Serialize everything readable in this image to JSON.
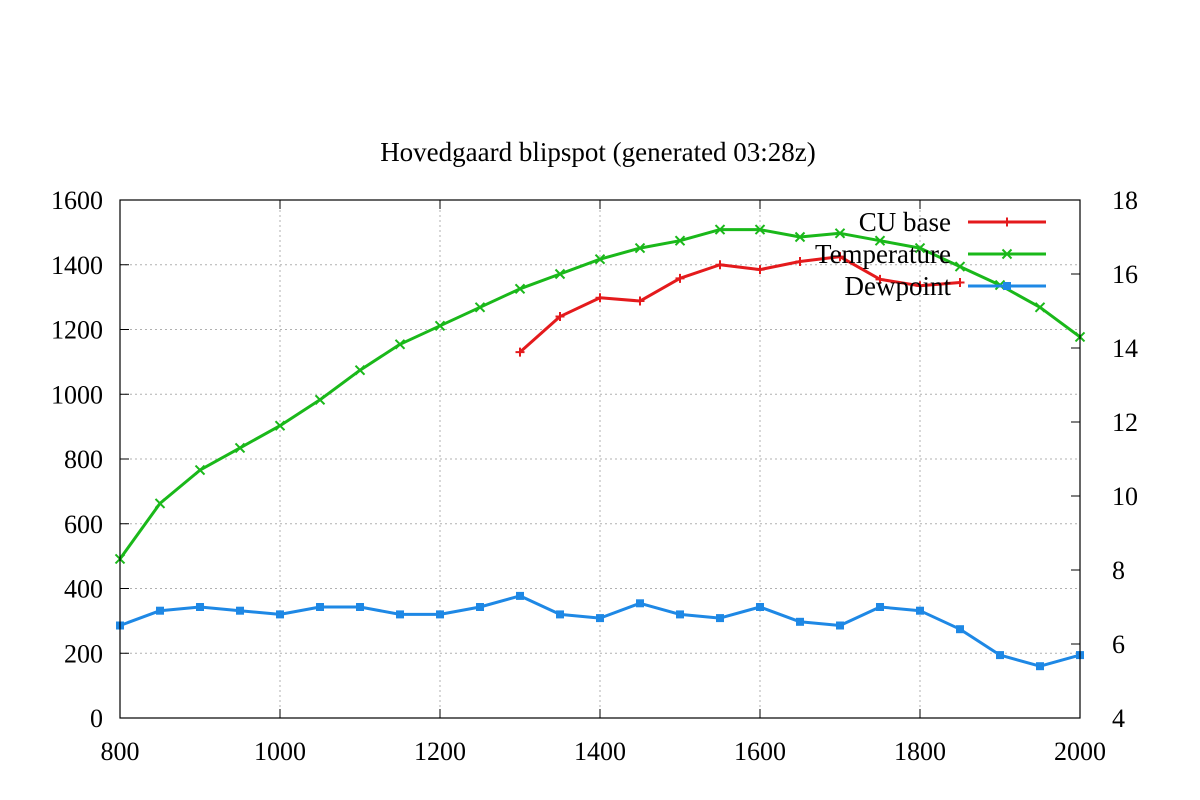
{
  "chart_data": {
    "type": "line",
    "title": "Hovedgaard  blipspot  (generated  03:28z)",
    "x_ticks": [
      "800",
      "1000",
      "1200",
      "1400",
      "1600",
      "1800",
      "2000"
    ],
    "y_ticks": [
      "0",
      "200",
      "400",
      "600",
      "800",
      "1000",
      "1200",
      "1400",
      "1600"
    ],
    "y2_ticks": [
      "4",
      "6",
      "8",
      "10",
      "12",
      "14",
      "16",
      "18"
    ],
    "xlim": [
      800,
      2000
    ],
    "ylim": [
      0,
      1600
    ],
    "y2lim": [
      4,
      18
    ],
    "grid": true,
    "legend_position": "top-right",
    "series": [
      {
        "name": "CU  base",
        "axis": "y",
        "color": "#e41a1c",
        "marker": "plus",
        "x": [
          1300,
          1350,
          1400,
          1450,
          1500,
          1550,
          1600,
          1650,
          1700,
          1750,
          1800,
          1850
        ],
        "y": [
          1130,
          1240,
          1298,
          1288,
          1358,
          1400,
          1385,
          1410,
          1425,
          1355,
          1335,
          1345
        ]
      },
      {
        "name": "Temperature",
        "axis": "y2",
        "color": "#1ab81a",
        "marker": "cross",
        "x": [
          800,
          850,
          900,
          950,
          1000,
          1050,
          1100,
          1150,
          1200,
          1250,
          1300,
          1350,
          1400,
          1450,
          1500,
          1550,
          1600,
          1650,
          1700,
          1750,
          1800,
          1850,
          1900,
          1950,
          2000
        ],
        "y": [
          8.3,
          9.8,
          10.7,
          11.3,
          11.9,
          12.6,
          13.4,
          14.1,
          14.6,
          15.1,
          15.6,
          16.0,
          16.4,
          16.7,
          16.9,
          17.2,
          17.2,
          17.0,
          17.1,
          16.9,
          16.7,
          16.2,
          15.7,
          15.1,
          14.3
        ]
      },
      {
        "name": "Dewpoint",
        "axis": "y2",
        "color": "#1e88e5",
        "marker": "square",
        "x": [
          800,
          850,
          900,
          950,
          1000,
          1050,
          1100,
          1150,
          1200,
          1250,
          1300,
          1350,
          1400,
          1450,
          1500,
          1550,
          1600,
          1650,
          1700,
          1750,
          1800,
          1850,
          1900,
          1950,
          2000
        ],
        "y": [
          6.5,
          6.9,
          7.0,
          6.9,
          6.8,
          7.0,
          7.0,
          6.8,
          6.8,
          7.0,
          7.3,
          6.8,
          6.7,
          7.1,
          6.8,
          6.7,
          7.0,
          6.6,
          6.5,
          7.0,
          6.9,
          6.4,
          5.7,
          5.4,
          5.7
        ]
      }
    ]
  }
}
